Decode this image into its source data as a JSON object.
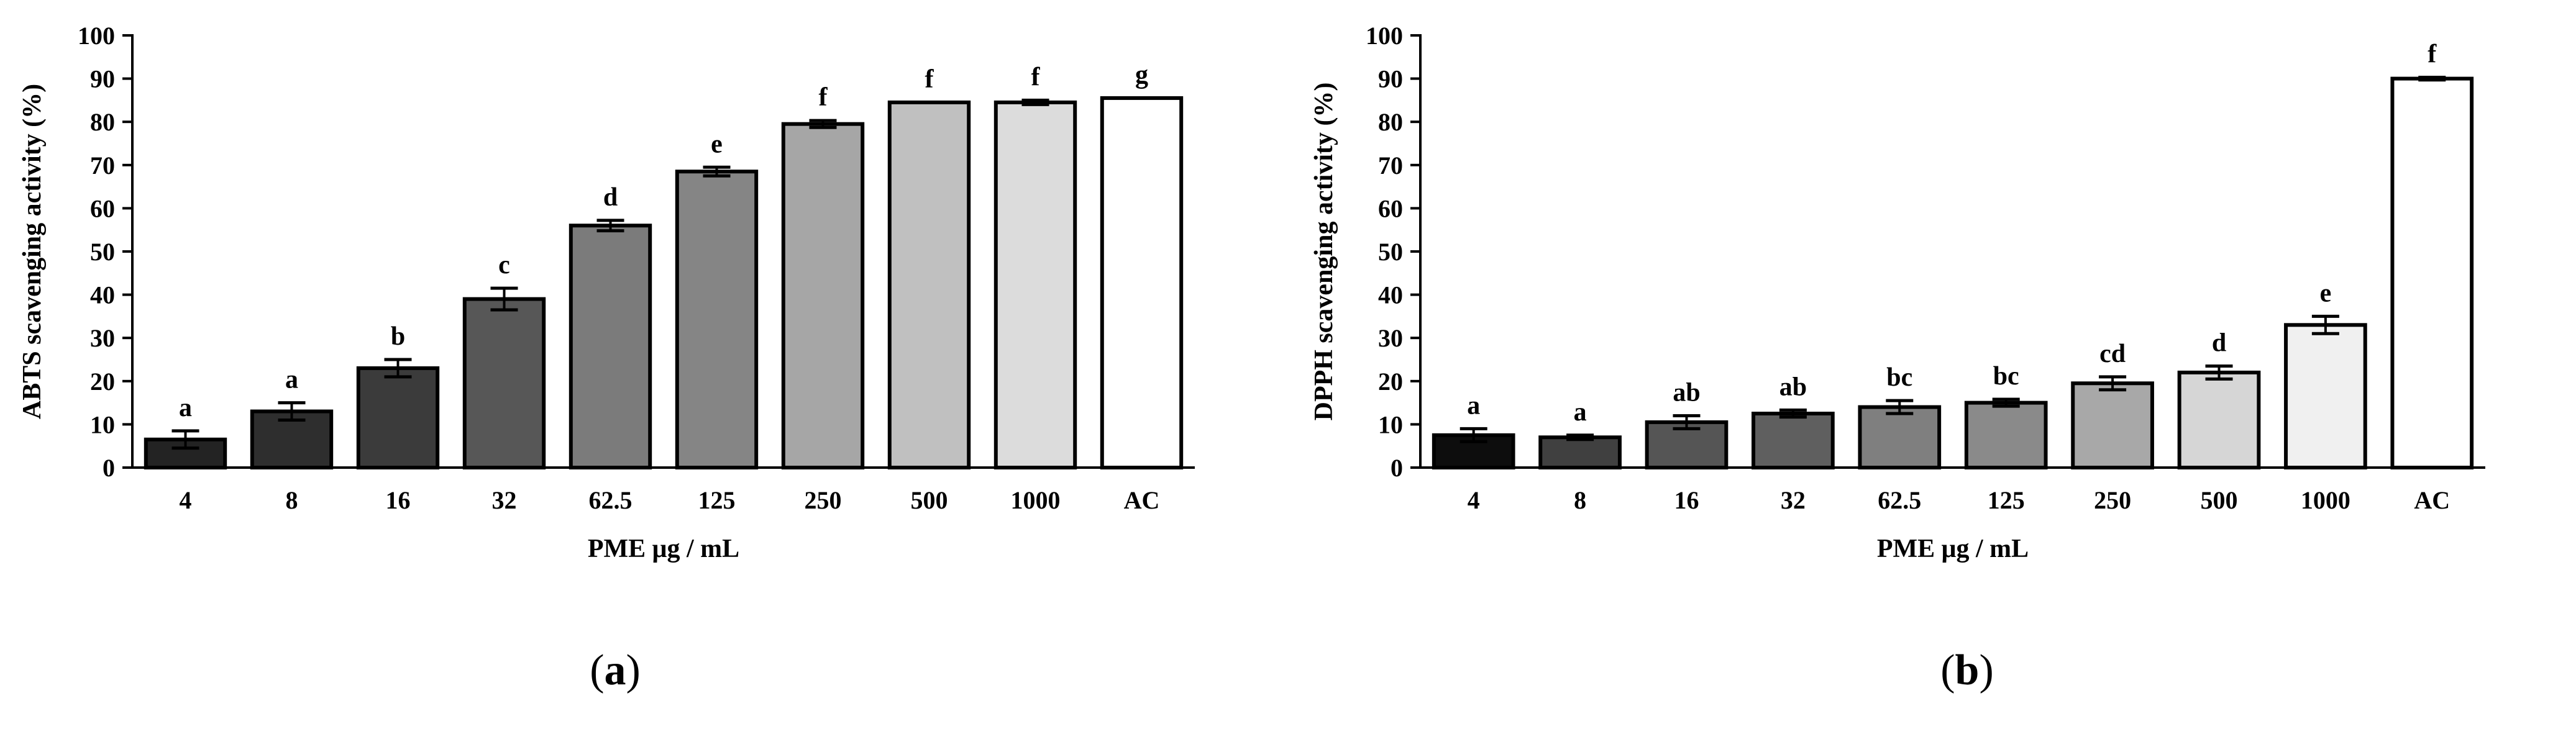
{
  "chart_data": [
    {
      "type": "bar",
      "panel_label": "a",
      "xlabel": "PME μg / mL",
      "ylabel": "ABTS scavenging activity (%)",
      "ylim": [
        0,
        100
      ],
      "yticks": [
        0,
        10,
        20,
        30,
        40,
        50,
        60,
        70,
        80,
        90,
        100
      ],
      "grid": false,
      "categories": [
        "4",
        "8",
        "16",
        "32",
        "62.5",
        "125",
        "250",
        "500",
        "1000",
        "AC"
      ],
      "values": [
        6.5,
        13,
        23,
        39,
        56,
        68.5,
        79.5,
        84.5,
        84.5,
        85.5
      ],
      "errors": [
        2,
        2,
        2,
        2.5,
        1.2,
        1,
        0.8,
        0,
        0.5,
        0
      ],
      "significance": [
        "a",
        "a",
        "b",
        "c",
        "d",
        "e",
        "f",
        "f",
        "f",
        "g"
      ],
      "colors": [
        "#232323",
        "#2e2e2e",
        "#3b3b3b",
        "#575757",
        "#7b7b7b",
        "#858585",
        "#a6a6a6",
        "#c0c0c0",
        "#dcdcdc",
        "#ffffff"
      ]
    },
    {
      "type": "bar",
      "panel_label": "b",
      "xlabel": "PME μg / mL",
      "ylabel": "DPPH scavenging activity (%)",
      "ylim": [
        0,
        100
      ],
      "yticks": [
        0,
        10,
        20,
        30,
        40,
        50,
        60,
        70,
        80,
        90,
        100
      ],
      "grid": false,
      "categories": [
        "4",
        "8",
        "16",
        "32",
        "62.5",
        "125",
        "250",
        "500",
        "1000",
        "AC"
      ],
      "values": [
        7.5,
        7,
        10.5,
        12.5,
        14,
        15,
        19.5,
        22,
        33,
        90
      ],
      "errors": [
        1.5,
        0.5,
        1.5,
        0.8,
        1.5,
        0.8,
        1.5,
        1.5,
        2,
        0.3
      ],
      "significance": [
        "a",
        "a",
        "ab",
        "ab",
        "bc",
        "bc",
        "cd",
        "d",
        "e",
        "f"
      ],
      "colors": [
        "#0d0d0d",
        "#404040",
        "#555555",
        "#5f5f5f",
        "#7f7f7f",
        "#8a8a8a",
        "#a8a8a8",
        "#d6d6d6",
        "#f0f0f0",
        "#ffffff"
      ]
    }
  ]
}
